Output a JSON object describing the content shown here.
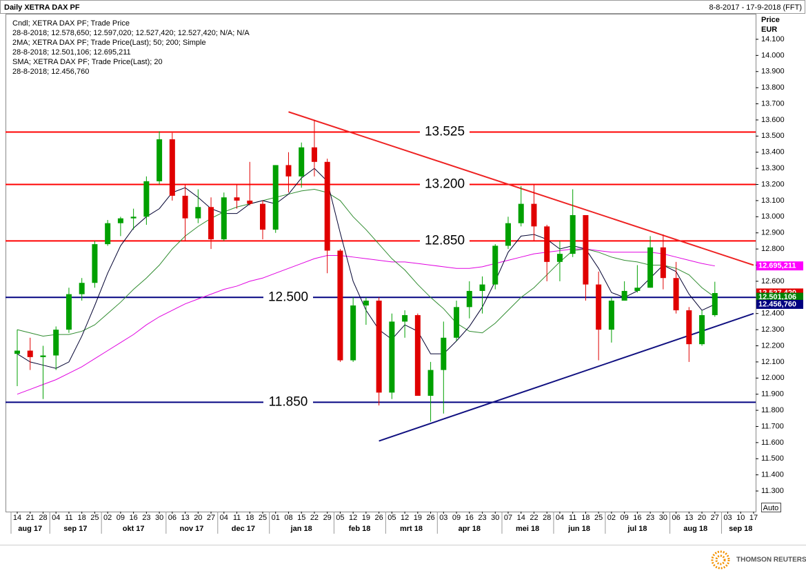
{
  "chart_data": {
    "type": "candlestick",
    "title": "Daily XETRA DAX PF",
    "date_range": "8-8-2017 - 17-9-2018 (FFT)",
    "legend_lines": [
      {
        "text": "Cndl; XETRA DAX PF; Trade Price",
        "color": "#e00000"
      },
      {
        "text": "28-8-2018; 12.578,650; 12.597,020; 12.527,420; 12.527,420; N/A; N/A",
        "color": "#e00000"
      },
      {
        "text": "2MA; XETRA DAX PF; Trade Price(Last);  50; 200; Simple",
        "color": "#008000"
      },
      {
        "text": "28-8-2018; 12.501,106; 12.695,211",
        "color": "#008000"
      },
      {
        "text": "SMA; XETRA DAX PF; Trade Price(Last);  20",
        "color": "#000080"
      },
      {
        "text": "28-8-2018; 12.456,760",
        "color": "#000080"
      }
    ],
    "y_axis_title": "Price",
    "y_axis_unit": "EUR",
    "auto_button": "Auto",
    "footer": "THOMSON REUTERS",
    "categories": [
      "14",
      "21",
      "28",
      "04",
      "11",
      "18",
      "25",
      "02",
      "09",
      "16",
      "23",
      "30",
      "06",
      "13",
      "20",
      "27",
      "04",
      "11",
      "18",
      "25",
      "01",
      "08",
      "15",
      "22",
      "29",
      "05",
      "12",
      "19",
      "26",
      "05",
      "12",
      "19",
      "26",
      "03",
      "09",
      "16",
      "23",
      "30",
      "07",
      "14",
      "22",
      "28",
      "04",
      "11",
      "18",
      "25",
      "02",
      "09",
      "16",
      "23",
      "30",
      "06",
      "13",
      "20",
      "27",
      "03",
      "10",
      "17"
    ],
    "months": [
      "aug 17",
      "sep 17",
      "okt 17",
      "nov 17",
      "dec 17",
      "jan 18",
      "feb 18",
      "mrt 18",
      "apr 18",
      "mei 18",
      "jun 18",
      "jul 18",
      "aug 18",
      "sep 18"
    ],
    "up_color": "#00a000",
    "down_color": "#e00000",
    "open": [
      12150,
      12170,
      12130,
      12140,
      12300,
      12520,
      12590,
      12830,
      12960,
      12990,
      13000,
      13220,
      13480,
      13130,
      12990,
      13060,
      12860,
      13120,
      13100,
      13080,
      12920,
      13320,
      13250,
      13430,
      13340,
      12790,
      12110,
      12450,
      12480,
      11910,
      12350,
      12390,
      11890,
      12050,
      12250,
      12440,
      12540,
      12580,
      12820,
      12960,
      13080,
      12940,
      12720,
      12770,
      13010,
      12580,
      12300,
      12480,
      12540,
      12560,
      12810,
      12620,
      12420,
      12210,
      12390,
      null,
      null,
      null
    ],
    "high": [
      12300,
      12250,
      12200,
      12320,
      12560,
      12620,
      12850,
      12980,
      13000,
      13050,
      13250,
      13530,
      13520,
      13200,
      13170,
      13120,
      13150,
      13200,
      13340,
      13100,
      13320,
      13400,
      13460,
      13600,
      13360,
      12800,
      12500,
      12500,
      12500,
      12400,
      12420,
      12400,
      12100,
      12350,
      12480,
      12600,
      12630,
      12830,
      13000,
      13190,
      13200,
      12950,
      12850,
      13170,
      13000,
      12660,
      12500,
      12600,
      12700,
      12880,
      12890,
      12720,
      12440,
      12420,
      12597,
      null,
      null,
      null
    ],
    "low": [
      11950,
      12050,
      11870,
      12050,
      12280,
      12480,
      12560,
      12820,
      12880,
      12920,
      12950,
      13200,
      13100,
      12850,
      12960,
      12800,
      12850,
      13050,
      13070,
      12860,
      12900,
      13150,
      13180,
      13250,
      12650,
      12100,
      12100,
      12330,
      11830,
      11870,
      12250,
      11900,
      11730,
      11780,
      12230,
      12370,
      12400,
      12550,
      12800,
      12940,
      12850,
      12600,
      12600,
      12750,
      12480,
      12110,
      12220,
      12480,
      12530,
      12560,
      12550,
      12400,
      12100,
      12200,
      12380,
      null,
      null,
      null
    ],
    "close": [
      12170,
      12130,
      12140,
      12300,
      12520,
      12590,
      12830,
      12960,
      12990,
      13000,
      13220,
      13480,
      13130,
      12990,
      13060,
      12860,
      13120,
      13100,
      13080,
      12920,
      13320,
      13250,
      13430,
      13340,
      12790,
      12110,
      12450,
      12480,
      11910,
      12350,
      12390,
      11890,
      12050,
      12250,
      12440,
      12540,
      12580,
      12820,
      12960,
      13080,
      12940,
      12720,
      12770,
      13010,
      12580,
      12300,
      12480,
      12540,
      12560,
      12810,
      12620,
      12420,
      12210,
      12390,
      12527,
      null,
      null,
      null
    ],
    "lines": [
      {
        "color": "#e000e0",
        "values": [
          11900,
          11930,
          11960,
          11990,
          12030,
          12070,
          12120,
          12170,
          12220,
          12270,
          12330,
          12380,
          12420,
          12460,
          12490,
          12520,
          12550,
          12570,
          12600,
          12620,
          12650,
          12680,
          12710,
          12740,
          12760,
          12760,
          12750,
          12740,
          12730,
          12720,
          12720,
          12710,
          12700,
          12690,
          12680,
          12680,
          12690,
          12710,
          12730,
          12750,
          12770,
          12780,
          12790,
          12800,
          12800,
          12790,
          12780,
          12780,
          12780,
          12780,
          12770,
          12750,
          12730,
          12710,
          12695,
          null,
          null,
          null
        ]
      },
      {
        "color": "#2e8b2e",
        "values": [
          12300,
          12280,
          12260,
          12270,
          12270,
          12290,
          12330,
          12400,
          12470,
          12550,
          12620,
          12700,
          12800,
          12880,
          12940,
          12990,
          13030,
          13060,
          13080,
          13100,
          13120,
          13140,
          13160,
          13170,
          13150,
          13100,
          13000,
          12920,
          12830,
          12740,
          12670,
          12580,
          12500,
          12430,
          12340,
          12290,
          12280,
          12340,
          12420,
          12500,
          12560,
          12640,
          12720,
          12790,
          12800,
          12780,
          12750,
          12730,
          12720,
          12700,
          12700,
          12680,
          12640,
          12560,
          12501,
          null,
          null,
          null
        ]
      },
      {
        "color": "#000030",
        "values": [
          12150,
          12100,
          12080,
          12060,
          12100,
          12260,
          12450,
          12650,
          12820,
          12930,
          13000,
          13050,
          13150,
          13180,
          13120,
          13050,
          13020,
          13020,
          13080,
          13100,
          13080,
          13140,
          13240,
          13300,
          13220,
          12900,
          12600,
          12420,
          12300,
          12240,
          12330,
          12290,
          12150,
          12150,
          12230,
          12320,
          12440,
          12600,
          12780,
          12880,
          12890,
          12860,
          12800,
          12820,
          12800,
          12680,
          12530,
          12500,
          12540,
          12620,
          12700,
          12660,
          12520,
          12420,
          12457,
          null,
          null,
          null
        ]
      }
    ],
    "levels": [
      {
        "value": 13525,
        "label": "13.525",
        "color": "#ff0000"
      },
      {
        "value": 13200,
        "label": "13.200",
        "color": "#ff0000"
      },
      {
        "value": 12850,
        "label": "12.850",
        "color": "#ff0000"
      },
      {
        "value": 12500,
        "label": "12.500",
        "color": "#000080"
      },
      {
        "value": 11850,
        "label": "11.850",
        "color": "#000080"
      }
    ],
    "trendlines": [
      {
        "color": "#ee2222",
        "x": [
          21,
          57
        ],
        "y": [
          13650,
          12700
        ]
      },
      {
        "color": "#101080",
        "x": [
          28,
          57
        ],
        "y": [
          11610,
          12400
        ]
      }
    ],
    "value_tags": [
      {
        "value": 12695.211,
        "label": "12.695,211",
        "color": "#ff00ff"
      },
      {
        "value": 12527.42,
        "label": "12.527,420",
        "color": "#e00000"
      },
      {
        "value": 12501.106,
        "label": "12.501,106",
        "color": "#008000"
      },
      {
        "value": 12456.76,
        "label": "12.456,760",
        "color": "#000080"
      }
    ],
    "ylim": [
      11172,
      14258
    ],
    "yticks": [
      {
        "value": 11300,
        "label": "11.300"
      },
      {
        "value": 11400,
        "label": "11.400"
      },
      {
        "value": 11500,
        "label": "11.500"
      },
      {
        "value": 11600,
        "label": "11.600"
      },
      {
        "value": 11700,
        "label": "11.700"
      },
      {
        "value": 11800,
        "label": "11.800"
      },
      {
        "value": 11900,
        "label": "11.900"
      },
      {
        "value": 12000,
        "label": "12.000"
      },
      {
        "value": 12100,
        "label": "12.100"
      },
      {
        "value": 12200,
        "label": "12.200"
      },
      {
        "value": 12300,
        "label": "12.300"
      },
      {
        "value": 12400,
        "label": "12.400"
      },
      {
        "value": 12500,
        "label": "12.500"
      },
      {
        "value": 12600,
        "label": "12.600"
      },
      {
        "value": 12700,
        "label": "12.700"
      },
      {
        "value": 12800,
        "label": "12.800"
      },
      {
        "value": 12900,
        "label": "12.900"
      },
      {
        "value": 13000,
        "label": "13.000"
      },
      {
        "value": 13100,
        "label": "13.100"
      },
      {
        "value": 13200,
        "label": "13.200"
      },
      {
        "value": 13300,
        "label": "13.300"
      },
      {
        "value": 13400,
        "label": "13.400"
      },
      {
        "value": 13500,
        "label": "13.500"
      },
      {
        "value": 13600,
        "label": "13.600"
      },
      {
        "value": 13700,
        "label": "13.700"
      },
      {
        "value": 13800,
        "label": "13.800"
      },
      {
        "value": 13900,
        "label": "13.900"
      },
      {
        "value": 14000,
        "label": "14.000"
      },
      {
        "value": 14100,
        "label": "14.100"
      }
    ]
  }
}
